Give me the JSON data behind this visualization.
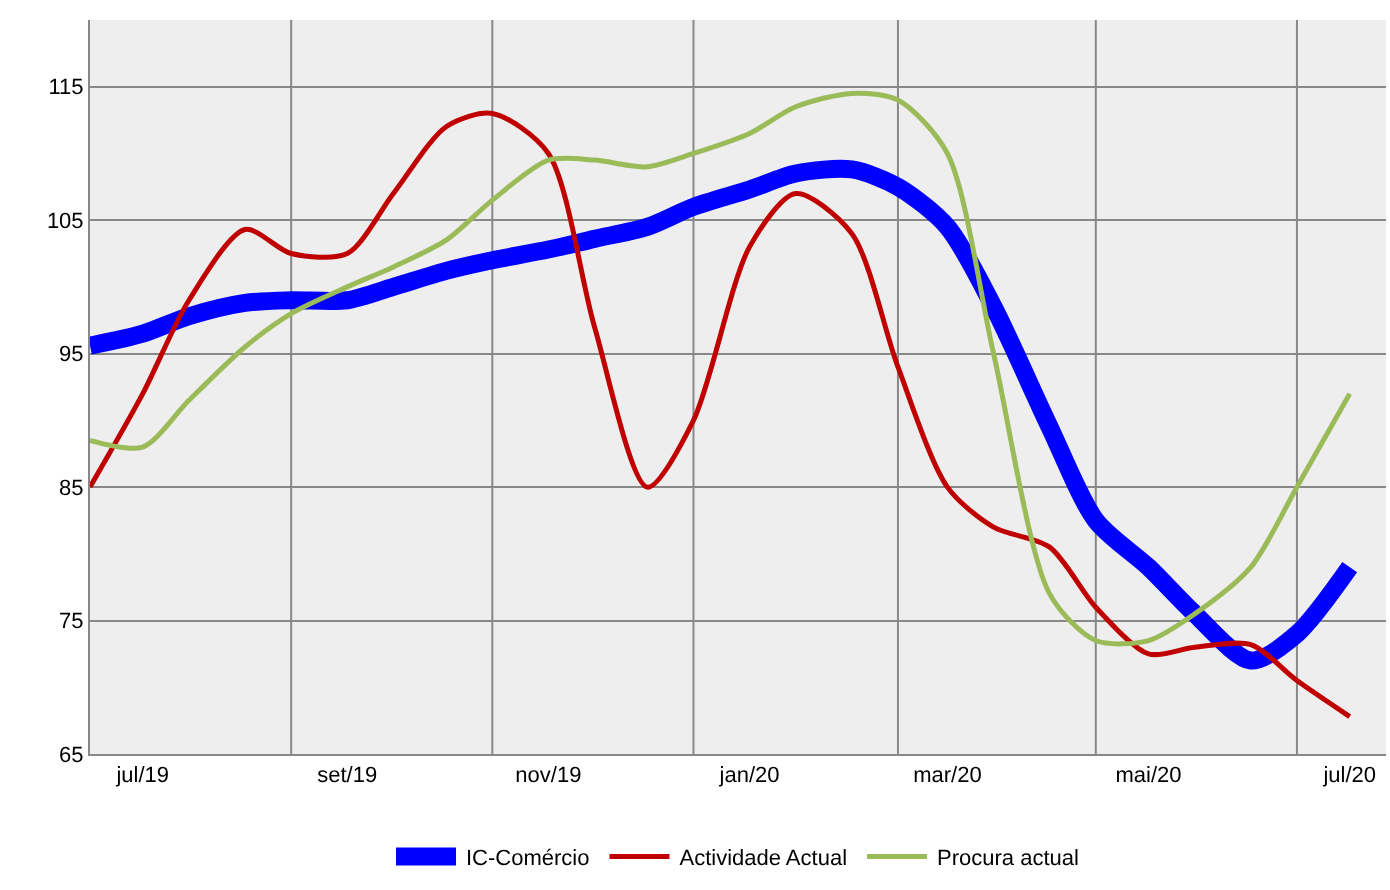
{
  "chart_data": {
    "type": "line",
    "x": [
      "2019-06-15",
      "2019-07-01",
      "2019-07-15",
      "2019-08-01",
      "2019-08-15",
      "2019-09-01",
      "2019-09-15",
      "2019-10-01",
      "2019-10-15",
      "2019-11-01",
      "2019-11-15",
      "2019-12-01",
      "2019-12-15",
      "2020-01-01",
      "2020-01-15",
      "2020-02-01",
      "2020-02-15",
      "2020-03-01",
      "2020-03-15",
      "2020-04-01",
      "2020-04-15",
      "2020-05-01",
      "2020-05-15",
      "2020-06-01",
      "2020-06-15",
      "2020-07-01"
    ],
    "series": [
      {
        "name": "IC-Comércio",
        "color": "#0000ff",
        "values": [
          95.6,
          96.5,
          97.8,
          98.8,
          99,
          99,
          100,
          101.2,
          102,
          102.8,
          103.6,
          104.5,
          106,
          107.3,
          108.5,
          108.8,
          107.5,
          104.5,
          98.5,
          89.5,
          82.5,
          79,
          75.5,
          72,
          74,
          79
        ]
      },
      {
        "name": "Actividade Actual",
        "color": "#c00000",
        "values": [
          85,
          92,
          99,
          104.3,
          102.5,
          102.5,
          107,
          112,
          113,
          110,
          97,
          85,
          90,
          103,
          107,
          104,
          94,
          85,
          82,
          80.5,
          76,
          72.5,
          73,
          73.2,
          70.5,
          67.8
        ]
      },
      {
        "name": "Procura actual",
        "color": "#9bbb59",
        "values": [
          88.5,
          88,
          91.5,
          95.5,
          98,
          100,
          101.5,
          103.5,
          106.5,
          109.5,
          109.5,
          109,
          110,
          111.5,
          113.5,
          114.5,
          114,
          110,
          95,
          77,
          73.5,
          73.5,
          75.5,
          79,
          85,
          92
        ]
      }
    ],
    "xlim": [
      "2019-06-15",
      "2020-07-12"
    ],
    "xticks": [
      {
        "value": "2019-07-01",
        "label": "jul/19"
      },
      {
        "value": "2019-08-15",
        "label": null
      },
      {
        "value": "2019-09-01",
        "label": "set/19"
      },
      {
        "value": "2019-10-15",
        "label": null
      },
      {
        "value": "2019-11-01",
        "label": "nov/19"
      },
      {
        "value": "2019-12-15",
        "label": null
      },
      {
        "value": "2020-01-01",
        "label": "jan/20"
      },
      {
        "value": "2020-02-15",
        "label": null
      },
      {
        "value": "2020-03-01",
        "label": "mar/20"
      },
      {
        "value": "2020-04-15",
        "label": null
      },
      {
        "value": "2020-05-01",
        "label": "mai/20"
      },
      {
        "value": "2020-06-15",
        "label": null
      },
      {
        "value": "2020-07-01",
        "label": "jul/20"
      }
    ],
    "ylim": [
      65,
      120
    ],
    "yticks": [
      65,
      75,
      85,
      95,
      105,
      115
    ],
    "grid": true,
    "legend": "bottom",
    "marker": "none",
    "line_style": "solid"
  }
}
